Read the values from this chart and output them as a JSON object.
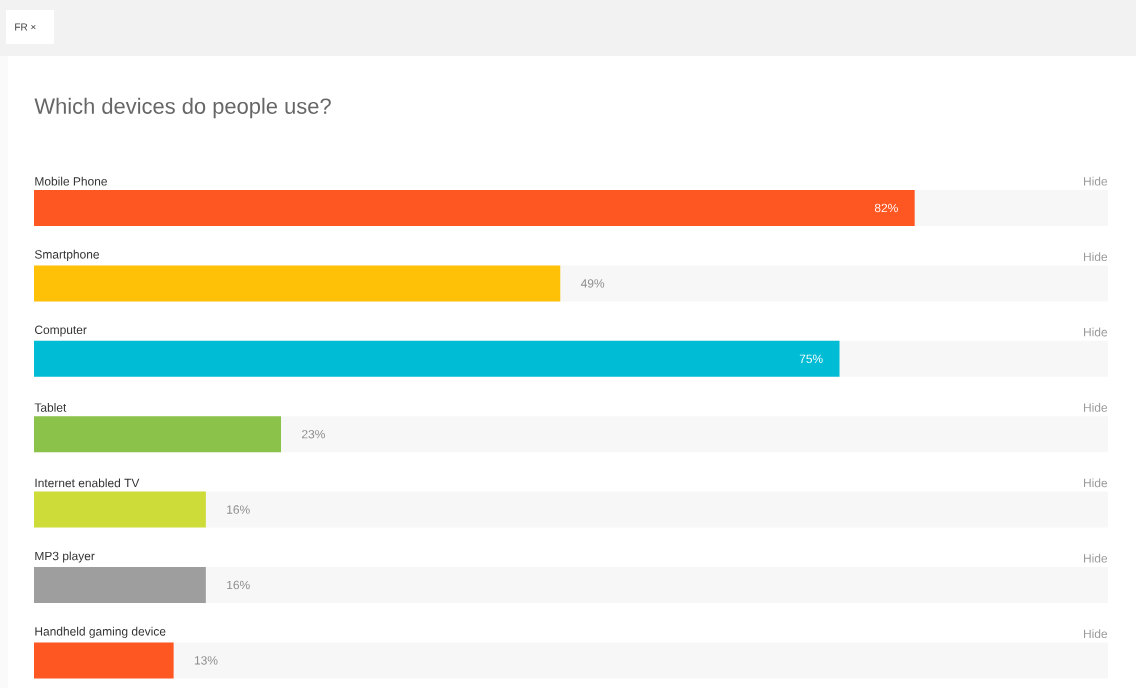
{
  "chart_data": {
    "type": "bar",
    "orientation": "horizontal",
    "title": "Which devices do people use?",
    "categories": [
      "Mobile Phone",
      "Smartphone",
      "Computer",
      "Tablet",
      "Internet enabled TV",
      "MP3 player",
      "Handheld gaming device"
    ],
    "values": [
      82,
      49,
      75,
      23,
      16,
      16,
      13
    ],
    "colors": [
      "#ff5722",
      "#ffc107",
      "#00bcd4",
      "#8bc34a",
      "#cddc39",
      "#9e9e9e",
      "#ff5722"
    ],
    "value_labels": [
      "82%",
      "49%",
      "75%",
      "23%",
      "16%",
      "16%",
      "13%"
    ],
    "xlim": [
      0,
      100
    ],
    "annotations": [
      "FR ×",
      "Hide",
      "Hide",
      "Hide",
      "Hide",
      "Hide",
      "Hide",
      "Hide"
    ]
  }
}
